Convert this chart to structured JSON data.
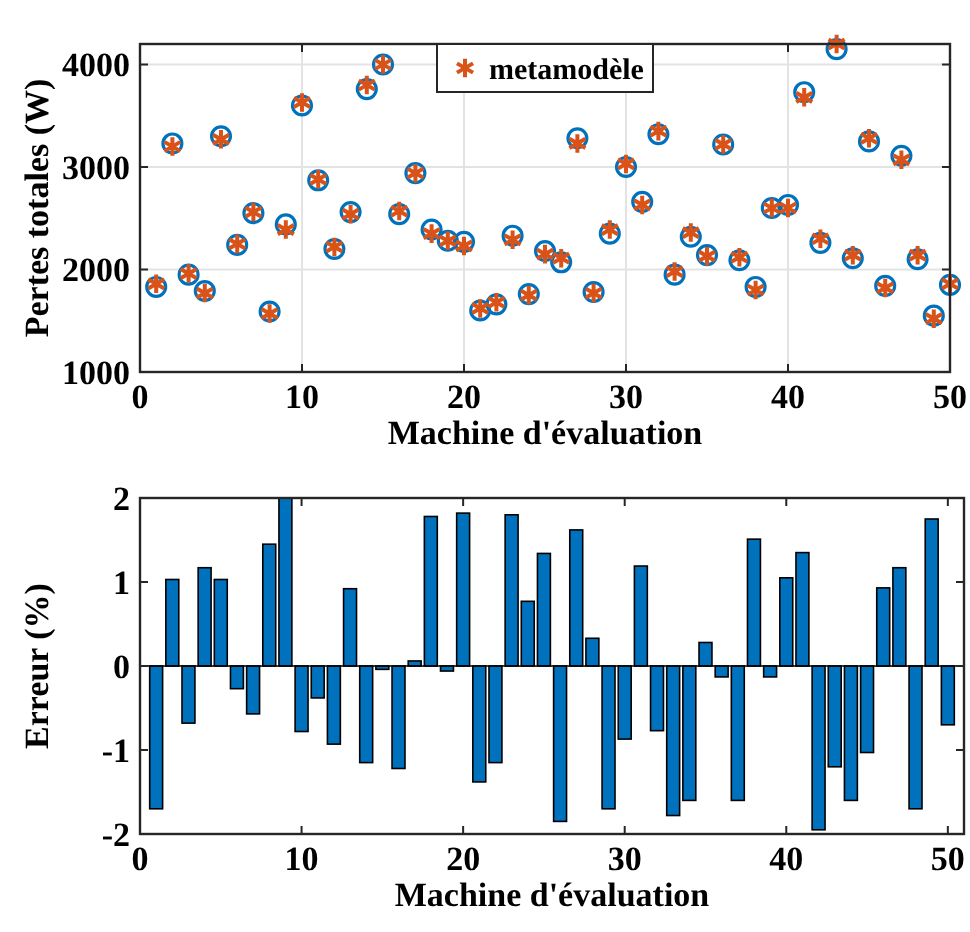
{
  "chart_data": [
    {
      "type": "scatter",
      "xlabel": "Machine d'évaluation",
      "ylabel": "Pertes totales (W)",
      "x": [
        1,
        2,
        3,
        4,
        5,
        6,
        7,
        8,
        9,
        10,
        11,
        12,
        13,
        14,
        15,
        16,
        17,
        18,
        19,
        20,
        21,
        22,
        23,
        24,
        25,
        26,
        27,
        28,
        29,
        30,
        31,
        32,
        33,
        34,
        35,
        36,
        37,
        38,
        39,
        40,
        41,
        42,
        43,
        44,
        45,
        46,
        47,
        48,
        49,
        50
      ],
      "xlim": [
        0,
        50
      ],
      "xticks": [
        0,
        10,
        20,
        30,
        40,
        50
      ],
      "ylim": [
        1000,
        4200
      ],
      "yticks": [
        1000,
        2000,
        3000,
        4000
      ],
      "grid": true,
      "legend": "top",
      "series": [
        {
          "color": "#0072bd",
          "marker": "circle",
          "values": [
            1830,
            3230,
            1950,
            1790,
            3300,
            2240,
            2550,
            1590,
            2440,
            3600,
            2870,
            2200,
            2560,
            3760,
            4000,
            2540,
            2940,
            2390,
            2280,
            2270,
            1600,
            1660,
            2330,
            1760,
            2180,
            2070,
            3280,
            1780,
            2350,
            3000,
            2660,
            3320,
            1950,
            2320,
            2140,
            3220,
            2090,
            1830,
            2600,
            2630,
            3730,
            2260,
            4150,
            2110,
            3250,
            1840,
            3110,
            2100,
            1550,
            1850
          ]
        },
        {
          "name": "metamodèle",
          "color": "#d95319",
          "marker": "cross",
          "values": [
            1860,
            3200,
            1960,
            1770,
            3270,
            2250,
            2560,
            1570,
            2390,
            3630,
            2880,
            2220,
            2540,
            3800,
            4000,
            2570,
            2940,
            2350,
            2280,
            2230,
            1620,
            1680,
            2290,
            1750,
            2150,
            2110,
            3230,
            1770,
            2390,
            3030,
            2630,
            3350,
            1980,
            2360,
            2130,
            3220,
            2120,
            1800,
            2600,
            2600,
            3680,
            2300,
            4200,
            2140,
            3280,
            1820,
            3070,
            2140,
            1520,
            1860
          ]
        }
      ]
    },
    {
      "type": "bar",
      "xlabel": "Machine d'évaluation",
      "ylabel": "Erreur (%)",
      "x": [
        1,
        2,
        3,
        4,
        5,
        6,
        7,
        8,
        9,
        10,
        11,
        12,
        13,
        14,
        15,
        16,
        17,
        18,
        19,
        20,
        21,
        22,
        23,
        24,
        25,
        26,
        27,
        28,
        29,
        30,
        31,
        32,
        33,
        34,
        35,
        36,
        37,
        38,
        39,
        40,
        41,
        42,
        43,
        44,
        45,
        46,
        47,
        48,
        49,
        50
      ],
      "xlim": [
        0,
        51
      ],
      "xticks": [
        0,
        10,
        20,
        30,
        40,
        50
      ],
      "ylim": [
        -2,
        2
      ],
      "yticks": [
        -2,
        -1,
        0,
        1,
        2
      ],
      "color": "#0072bd",
      "values": [
        -1.7,
        1.03,
        -0.68,
        1.17,
        1.03,
        -0.27,
        -0.57,
        1.45,
        2.0,
        -0.78,
        -0.38,
        -0.93,
        0.92,
        -1.15,
        -0.04,
        -1.22,
        0.06,
        1.78,
        -0.06,
        1.82,
        -1.38,
        -1.15,
        1.8,
        0.77,
        1.34,
        -1.85,
        1.62,
        0.33,
        -1.7,
        -0.87,
        1.19,
        -0.77,
        -1.78,
        -1.6,
        0.28,
        -0.13,
        -1.6,
        1.51,
        -0.13,
        1.05,
        1.35,
        -1.95,
        -1.2,
        -1.6,
        -1.03,
        0.93,
        1.17,
        -1.7,
        1.75,
        -0.7
      ]
    }
  ]
}
